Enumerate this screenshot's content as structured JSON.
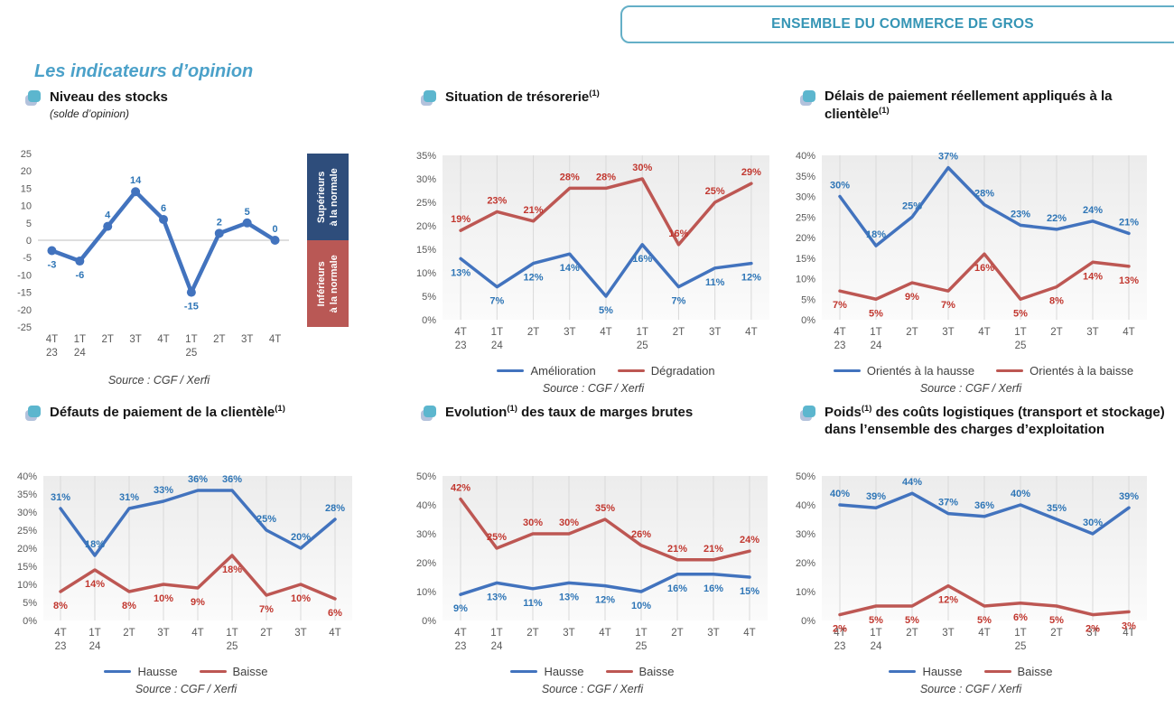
{
  "header": {
    "title": "ENSEMBLE DU COMMERCE DE GROS"
  },
  "page": {
    "section_title": "Les indicateurs d’opinion"
  },
  "colors": {
    "accent_teal": "#3595B5",
    "blue_line": "#4273BE",
    "blue_label": "#2E75B6",
    "red_line": "#BD5753",
    "red_label": "#C1372F",
    "navy_box": "#2E4D7B",
    "red_box": "#B95855"
  },
  "chart_data": [
    {
      "type": "line",
      "title": {
        "pre": "Niveau des stocks",
        "sup": "",
        "post": ""
      },
      "subtitle": "(solde d’opinion)",
      "source": "Source : CGF / Xerfi",
      "categories": [
        [
          "4T",
          "23"
        ],
        [
          "1T",
          "24"
        ],
        [
          "2T"
        ],
        [
          "3T"
        ],
        [
          "4T"
        ],
        [
          "1T",
          "25"
        ],
        [
          "2T"
        ],
        [
          "3T"
        ],
        [
          "4T"
        ]
      ],
      "y_axis": {
        "min": -25,
        "max": 25,
        "step": 5,
        "suffix": ""
      },
      "grid": {
        "vertical": false,
        "zero_line": true,
        "plot_bg": false
      },
      "legend": false,
      "series": [
        {
          "name": "Niveau des stocks",
          "color": "#4273BE",
          "label_color": "#2E75B6",
          "values": [
            -3,
            -6,
            4,
            14,
            6,
            -15,
            2,
            5,
            0
          ],
          "label_side": "auto",
          "markers": true
        }
      ],
      "annotations": {
        "upper": {
          "line1": "Supérieurs",
          "line2": "à la normale"
        },
        "lower": {
          "line1": "Inférieurs",
          "line2": "à la normale"
        }
      }
    },
    {
      "type": "line",
      "title": {
        "pre": "Situation de trésorerie",
        "sup": "(1)",
        "post": ""
      },
      "source": "Source : CGF / Xerfi",
      "categories": [
        [
          "4T",
          "23"
        ],
        [
          "1T",
          "24"
        ],
        [
          "2T"
        ],
        [
          "3T"
        ],
        [
          "4T"
        ],
        [
          "1T",
          "25"
        ],
        [
          "2T"
        ],
        [
          "3T"
        ],
        [
          "4T"
        ]
      ],
      "y_axis": {
        "min": 0,
        "max": 35,
        "step": 5,
        "suffix": "%"
      },
      "grid": {
        "vertical": true,
        "zero_line": false,
        "plot_bg": true
      },
      "legend": true,
      "series": [
        {
          "name": "Amélioration",
          "color": "#4273BE",
          "label_color": "#2E75B6",
          "values": [
            13,
            7,
            12,
            14,
            5,
            16,
            7,
            11,
            12
          ],
          "label_side": "below",
          "markers": false
        },
        {
          "name": "Dégradation",
          "color": "#BD5753",
          "label_color": "#C1372F",
          "values": [
            19,
            23,
            21,
            28,
            28,
            30,
            16,
            25,
            29
          ],
          "label_side": "above",
          "markers": false
        }
      ]
    },
    {
      "type": "line",
      "title": {
        "pre": "Délais de paiement réellement appliqués à la clientèle",
        "sup": "(1)",
        "post": ""
      },
      "source": "Source : CGF / Xerfi",
      "categories": [
        [
          "4T",
          "23"
        ],
        [
          "1T",
          "24"
        ],
        [
          "2T"
        ],
        [
          "3T"
        ],
        [
          "4T"
        ],
        [
          "1T",
          "25"
        ],
        [
          "2T"
        ],
        [
          "3T"
        ],
        [
          "4T"
        ]
      ],
      "y_axis": {
        "min": 0,
        "max": 40,
        "step": 5,
        "suffix": "%"
      },
      "grid": {
        "vertical": true,
        "zero_line": false,
        "plot_bg": true
      },
      "legend": true,
      "series": [
        {
          "name": "Orientés à la hausse",
          "color": "#4273BE",
          "label_color": "#2E75B6",
          "values": [
            30,
            18,
            25,
            37,
            28,
            23,
            22,
            24,
            21
          ],
          "label_side": "above",
          "markers": false
        },
        {
          "name": "Orientés à la baisse",
          "color": "#BD5753",
          "label_color": "#C1372F",
          "values": [
            7,
            5,
            9,
            7,
            16,
            5,
            8,
            14,
            13
          ],
          "label_side": "below",
          "markers": false
        }
      ]
    },
    {
      "type": "line",
      "title": {
        "pre": "Défauts de paiement de la clientèle",
        "sup": "(1)",
        "post": ""
      },
      "source": "Source : CGF / Xerfi",
      "categories": [
        [
          "4T",
          "23"
        ],
        [
          "1T",
          "24"
        ],
        [
          "2T"
        ],
        [
          "3T"
        ],
        [
          "4T"
        ],
        [
          "1T",
          "25"
        ],
        [
          "2T"
        ],
        [
          "3T"
        ],
        [
          "4T"
        ]
      ],
      "y_axis": {
        "min": 0,
        "max": 40,
        "step": 5,
        "suffix": "%"
      },
      "grid": {
        "vertical": true,
        "zero_line": false,
        "plot_bg": true
      },
      "legend": true,
      "series": [
        {
          "name": "Hausse",
          "color": "#4273BE",
          "label_color": "#2E75B6",
          "values": [
            31,
            18,
            31,
            33,
            36,
            36,
            25,
            20,
            28
          ],
          "label_side": "above",
          "markers": false
        },
        {
          "name": "Baisse",
          "color": "#BD5753",
          "label_color": "#C1372F",
          "values": [
            8,
            14,
            8,
            10,
            9,
            18,
            7,
            10,
            6
          ],
          "label_side": "below",
          "markers": false
        }
      ]
    },
    {
      "type": "line",
      "title": {
        "pre": "Evolution",
        "sup": "(1)",
        "post": " des taux de marges brutes"
      },
      "source": "Source : CGF / Xerfi",
      "categories": [
        [
          "4T",
          "23"
        ],
        [
          "1T",
          "24"
        ],
        [
          "2T"
        ],
        [
          "3T"
        ],
        [
          "4T"
        ],
        [
          "1T",
          "25"
        ],
        [
          "2T"
        ],
        [
          "3T"
        ],
        [
          "4T"
        ]
      ],
      "y_axis": {
        "min": 0,
        "max": 50,
        "step": 10,
        "suffix": "%"
      },
      "grid": {
        "vertical": true,
        "zero_line": false,
        "plot_bg": true
      },
      "legend": true,
      "series": [
        {
          "name": "Hausse",
          "color": "#4273BE",
          "label_color": "#2E75B6",
          "values": [
            9,
            13,
            11,
            13,
            12,
            10,
            16,
            16,
            15
          ],
          "label_side": "below",
          "markers": false
        },
        {
          "name": "Baisse",
          "color": "#BD5753",
          "label_color": "#C1372F",
          "values": [
            42,
            25,
            30,
            30,
            35,
            26,
            21,
            21,
            24
          ],
          "label_side": "above",
          "markers": false
        }
      ]
    },
    {
      "type": "line",
      "title": {
        "pre": "Poids",
        "sup": "(1)",
        "post": " des coûts logistiques (transport et stockage) dans l’ensemble des charges d’exploitation"
      },
      "source": "Source : CGF / Xerfi",
      "categories": [
        [
          "4T",
          "23"
        ],
        [
          "1T",
          "24"
        ],
        [
          "2T"
        ],
        [
          "3T"
        ],
        [
          "4T"
        ],
        [
          "1T",
          "25"
        ],
        [
          "2T"
        ],
        [
          "3T"
        ],
        [
          "4T"
        ]
      ],
      "y_axis": {
        "min": 0,
        "max": 50,
        "step": 10,
        "suffix": "%"
      },
      "grid": {
        "vertical": true,
        "zero_line": false,
        "plot_bg": true
      },
      "legend": true,
      "series": [
        {
          "name": "Hausse",
          "color": "#4273BE",
          "label_color": "#2E75B6",
          "values": [
            40,
            39,
            44,
            37,
            36,
            40,
            35,
            30,
            39
          ],
          "label_side": "above",
          "markers": false
        },
        {
          "name": "Baisse",
          "color": "#BD5753",
          "label_color": "#C1372F",
          "values": [
            2,
            5,
            5,
            12,
            5,
            6,
            5,
            2,
            3
          ],
          "label_side": "below",
          "markers": false
        }
      ]
    }
  ]
}
